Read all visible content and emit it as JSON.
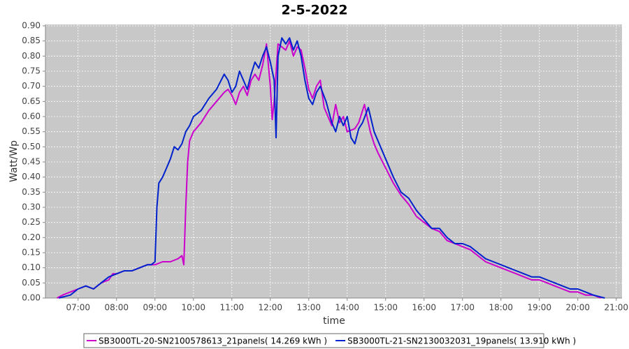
{
  "chart_data": {
    "type": "line",
    "title": "2-5-2022",
    "x_label": "time",
    "y_label": "Watt/Wp",
    "xlim": [
      6.15,
      21.15
    ],
    "xticks": [
      {
        "value": 7,
        "label": "07:00"
      },
      {
        "value": 8,
        "label": "08:00"
      },
      {
        "value": 9,
        "label": "09:00"
      },
      {
        "value": 10,
        "label": "10:00"
      },
      {
        "value": 11,
        "label": "11:00"
      },
      {
        "value": 12,
        "label": "12:00"
      },
      {
        "value": 13,
        "label": "13:00"
      },
      {
        "value": 14,
        "label": "14:00"
      },
      {
        "value": 15,
        "label": "15:00"
      },
      {
        "value": 16,
        "label": "16:00"
      },
      {
        "value": 17,
        "label": "17:00"
      },
      {
        "value": 18,
        "label": "18:00"
      },
      {
        "value": 19,
        "label": "19:00"
      },
      {
        "value": 20,
        "label": "20:00"
      },
      {
        "value": 21,
        "label": "21:00"
      }
    ],
    "ylim": [
      0,
      0.9
    ],
    "yticks": [
      {
        "value": 0,
        "label": "0.00"
      },
      {
        "value": 0.05,
        "label": "0.05"
      },
      {
        "value": 0.1,
        "label": "0.10"
      },
      {
        "value": 0.15,
        "label": "0.15"
      },
      {
        "value": 0.2,
        "label": "0.20"
      },
      {
        "value": 0.25,
        "label": "0.25"
      },
      {
        "value": 0.3,
        "label": "0.30"
      },
      {
        "value": 0.35,
        "label": "0.35"
      },
      {
        "value": 0.4,
        "label": "0.40"
      },
      {
        "value": 0.45,
        "label": "0.45"
      },
      {
        "value": 0.5,
        "label": "0.50"
      },
      {
        "value": 0.55,
        "label": "0.55"
      },
      {
        "value": 0.6,
        "label": "0.60"
      },
      {
        "value": 0.65,
        "label": "0.65"
      },
      {
        "value": 0.7,
        "label": "0.70"
      },
      {
        "value": 0.75,
        "label": "0.75"
      },
      {
        "value": 0.8,
        "label": "0.80"
      },
      {
        "value": 0.85,
        "label": "0.85"
      },
      {
        "value": 0.9,
        "label": "0.90"
      }
    ],
    "grid": true,
    "legend": "bottom",
    "series": [
      {
        "name": "SB3000TL-20-SN2100578613_21panels( 14.269 kWh )",
        "color": "#cc00cc",
        "x": [
          6.45,
          6.6,
          6.8,
          7.0,
          7.2,
          7.4,
          7.6,
          7.8,
          7.9,
          8.0,
          8.2,
          8.4,
          8.6,
          8.8,
          9.0,
          9.2,
          9.4,
          9.6,
          9.7,
          9.75,
          9.8,
          9.85,
          9.9,
          10.0,
          10.2,
          10.4,
          10.6,
          10.8,
          10.9,
          11.0,
          11.1,
          11.2,
          11.3,
          11.4,
          11.5,
          11.6,
          11.7,
          11.8,
          11.9,
          12.0,
          12.05,
          12.1,
          12.2,
          12.3,
          12.4,
          12.5,
          12.6,
          12.7,
          12.8,
          12.9,
          13.0,
          13.1,
          13.2,
          13.3,
          13.4,
          13.5,
          13.6,
          13.7,
          13.8,
          13.9,
          14.0,
          14.2,
          14.3,
          14.45,
          14.6,
          14.7,
          14.8,
          15.0,
          15.2,
          15.4,
          15.6,
          15.8,
          16.0,
          16.2,
          16.4,
          16.6,
          16.8,
          17.0,
          17.2,
          17.4,
          17.6,
          17.8,
          18.0,
          18.2,
          18.4,
          18.6,
          18.8,
          19.0,
          19.2,
          19.4,
          19.6,
          19.8,
          20.0,
          20.2,
          20.4,
          20.6
        ],
        "values": [
          0,
          0.01,
          0.02,
          0.03,
          0.04,
          0.03,
          0.05,
          0.06,
          0.08,
          0.08,
          0.09,
          0.09,
          0.1,
          0.11,
          0.11,
          0.12,
          0.12,
          0.13,
          0.14,
          0.11,
          0.3,
          0.45,
          0.52,
          0.55,
          0.58,
          0.62,
          0.65,
          0.68,
          0.69,
          0.67,
          0.64,
          0.68,
          0.7,
          0.67,
          0.72,
          0.74,
          0.72,
          0.77,
          0.84,
          0.7,
          0.59,
          0.65,
          0.84,
          0.83,
          0.82,
          0.85,
          0.8,
          0.83,
          0.82,
          0.76,
          0.69,
          0.66,
          0.7,
          0.72,
          0.63,
          0.6,
          0.57,
          0.64,
          0.58,
          0.6,
          0.55,
          0.56,
          0.58,
          0.64,
          0.55,
          0.51,
          0.48,
          0.43,
          0.38,
          0.34,
          0.31,
          0.27,
          0.25,
          0.23,
          0.22,
          0.19,
          0.18,
          0.17,
          0.16,
          0.14,
          0.12,
          0.11,
          0.1,
          0.09,
          0.08,
          0.07,
          0.06,
          0.06,
          0.05,
          0.04,
          0.03,
          0.02,
          0.02,
          0.01,
          0.01,
          0
        ]
      },
      {
        "name": "SB3000TL-21-SN2130032031_19panels( 13.910 kWh )",
        "color": "#0022cc",
        "x": [
          6.5,
          6.8,
          7.0,
          7.2,
          7.4,
          7.6,
          7.8,
          8.0,
          8.2,
          8.4,
          8.6,
          8.8,
          8.9,
          9.0,
          9.05,
          9.1,
          9.2,
          9.3,
          9.4,
          9.5,
          9.6,
          9.7,
          9.8,
          9.9,
          10.0,
          10.2,
          10.4,
          10.6,
          10.8,
          10.9,
          11.0,
          11.1,
          11.2,
          11.3,
          11.4,
          11.5,
          11.6,
          11.7,
          11.8,
          11.9,
          12.0,
          12.1,
          12.15,
          12.2,
          12.3,
          12.4,
          12.5,
          12.6,
          12.7,
          12.8,
          12.9,
          13.0,
          13.1,
          13.2,
          13.3,
          13.45,
          13.6,
          13.7,
          13.8,
          13.9,
          14.0,
          14.1,
          14.2,
          14.3,
          14.4,
          14.55,
          14.7,
          14.8,
          15.0,
          15.2,
          15.4,
          15.6,
          15.8,
          16.0,
          16.2,
          16.4,
          16.6,
          16.8,
          17.0,
          17.2,
          17.4,
          17.6,
          17.8,
          18.0,
          18.2,
          18.4,
          18.6,
          18.8,
          19.0,
          19.2,
          19.4,
          19.6,
          19.8,
          20.0,
          20.2,
          20.4,
          20.7
        ],
        "values": [
          0,
          0.01,
          0.03,
          0.04,
          0.03,
          0.05,
          0.07,
          0.08,
          0.09,
          0.09,
          0.1,
          0.11,
          0.11,
          0.12,
          0.3,
          0.38,
          0.4,
          0.43,
          0.46,
          0.5,
          0.49,
          0.51,
          0.55,
          0.57,
          0.6,
          0.62,
          0.66,
          0.69,
          0.74,
          0.72,
          0.68,
          0.7,
          0.75,
          0.72,
          0.69,
          0.74,
          0.78,
          0.76,
          0.8,
          0.83,
          0.78,
          0.72,
          0.53,
          0.8,
          0.86,
          0.84,
          0.86,
          0.82,
          0.85,
          0.8,
          0.72,
          0.66,
          0.64,
          0.68,
          0.7,
          0.65,
          0.58,
          0.55,
          0.6,
          0.57,
          0.6,
          0.53,
          0.51,
          0.56,
          0.58,
          0.63,
          0.55,
          0.52,
          0.46,
          0.4,
          0.35,
          0.33,
          0.29,
          0.26,
          0.23,
          0.23,
          0.2,
          0.18,
          0.18,
          0.17,
          0.15,
          0.13,
          0.12,
          0.11,
          0.1,
          0.09,
          0.08,
          0.07,
          0.07,
          0.06,
          0.05,
          0.04,
          0.03,
          0.03,
          0.02,
          0.01,
          0
        ]
      }
    ]
  }
}
